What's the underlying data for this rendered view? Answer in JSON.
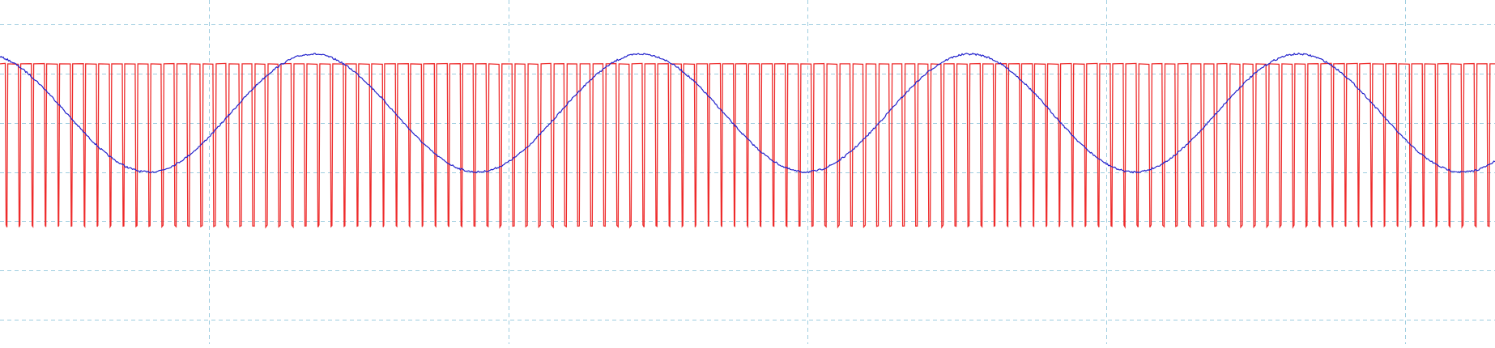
{
  "colors": {
    "background": "#ffffff",
    "grid": "#9ecde0",
    "pwm_trace": "#ee2b2b",
    "sine_trace": "#2222cc"
  },
  "chart_data": {
    "type": "line",
    "title": "",
    "xlabel": "",
    "ylabel": "",
    "grid": true,
    "x_range": [
      0,
      10
    ],
    "y_range": [
      -3.5,
      3.5
    ],
    "vertical_gridlines": [
      1.4,
      3.4,
      5.4,
      7.4,
      9.4
    ],
    "horizontal_gridlines": [
      -3,
      -2,
      -1,
      0,
      1,
      2,
      3
    ],
    "series": [
      {
        "key": "pwm",
        "color": "#ee2b2b",
        "style": "square-wave",
        "levels": [
          2.2,
          -1.1
        ],
        "carrier_periods": 115,
        "modulation_periods": 4.55,
        "modulation_phase": 0.3,
        "base_duty": 0.79,
        "duty_swing": 0.04
      },
      {
        "key": "sine",
        "color": "#2222cc",
        "style": "sine",
        "amplitude": 1.2,
        "offset": 1.2,
        "periods": 4.55,
        "phase": 0.3
      }
    ]
  }
}
